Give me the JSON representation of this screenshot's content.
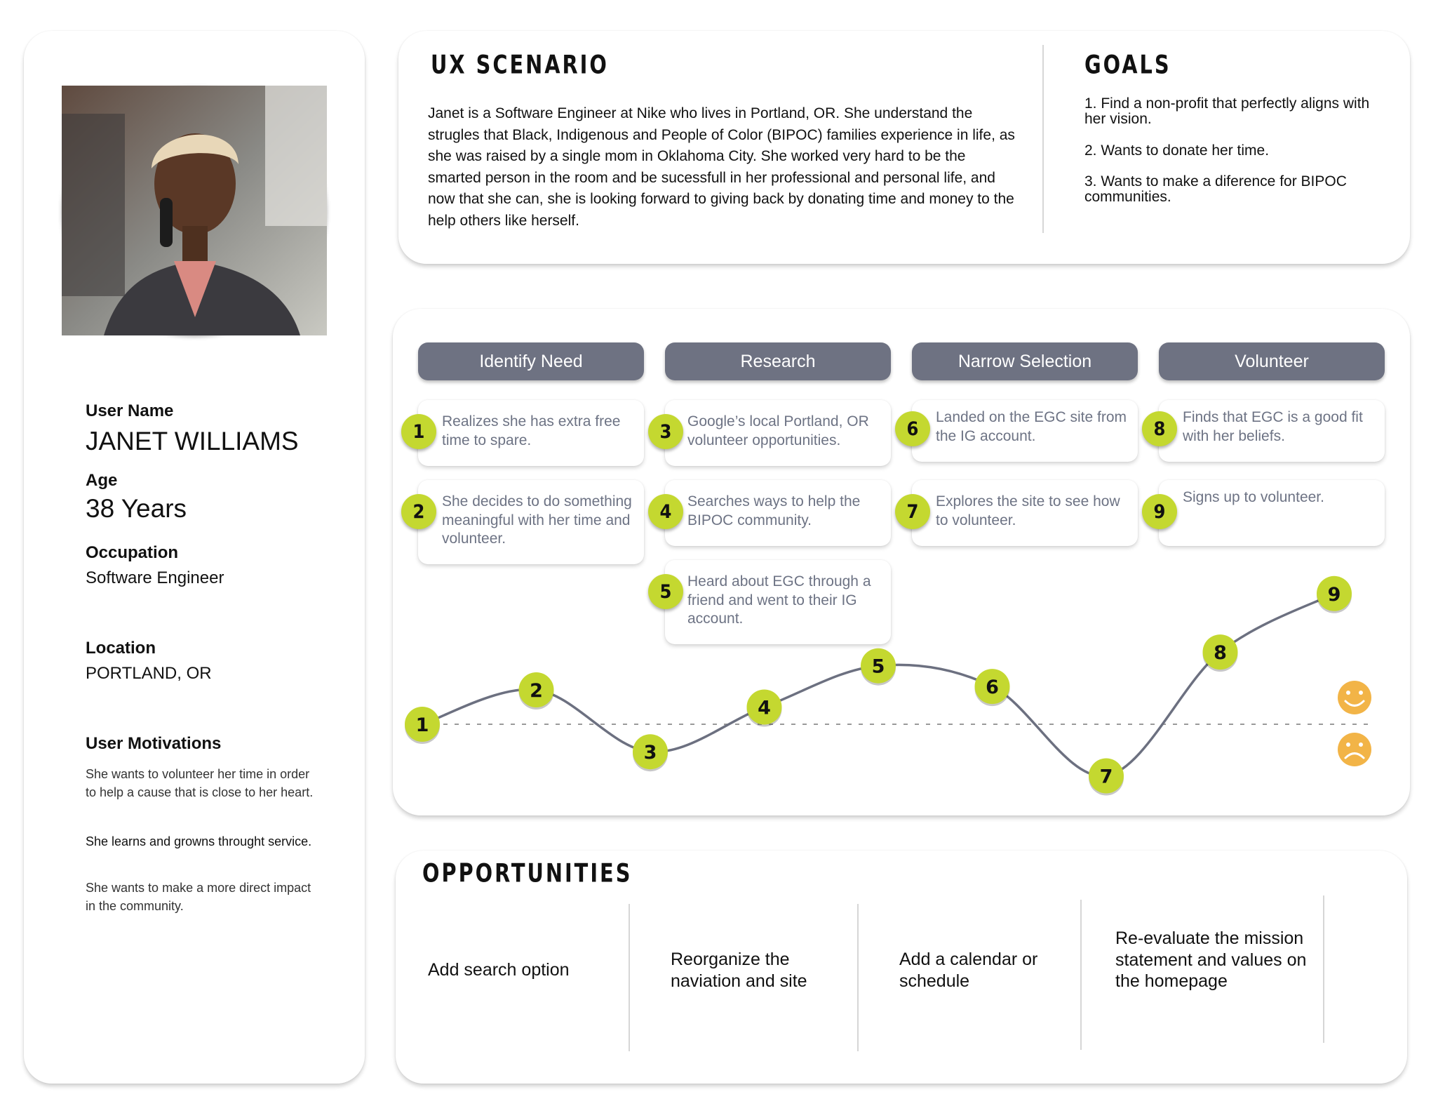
{
  "persona": {
    "user_name_label": "User Name",
    "user_name": "JANET WILLIAMS",
    "age_label": "Age",
    "age": "38 Years",
    "occupation_label": "Occupation",
    "occupation": "Software Engineer",
    "location_label": "Location",
    "location": "PORTLAND, OR",
    "motivations_label": "User Motivations",
    "motivations": [
      "She wants to volunteer her time in order to help  a cause that is close to her heart.",
      "She learns and growns throught service.",
      "She wants to make a more direct impact in the community."
    ]
  },
  "scenario": {
    "title": "UX SCENARIO",
    "text": "Janet is a Software Engineer at Nike who lives in Portland, OR.  She understand the strugles that Black, Indigenous and People of Color (BIPOC) families experience in life, as she was raised by a single mom in Oklahoma City. She worked very hard to be the smarted person in the room and be sucessfull in her professional and personal life, and now that she can, she is looking forward to giving back by donating time and money to the help others like herself."
  },
  "goals": {
    "title": "GOALS",
    "items": [
      "1. Find a non-profit that perfectly aligns with her vision.",
      "2. Wants to donate her time.",
      "3. Wants to make a diference for BIPOC communities."
    ]
  },
  "journey": {
    "phases": [
      "Identify Need",
      "Research",
      "Narrow Selection",
      "Volunteer"
    ],
    "steps": [
      {
        "num": "1",
        "text": "Realizes she has extra free time to spare."
      },
      {
        "num": "2",
        "text": "She decides to do something meaningful with her time and volunteer."
      },
      {
        "num": "3",
        "text": "Google’s local Portland, OR volunteer opportunities."
      },
      {
        "num": "4",
        "text": "Searches ways to help the BIPOC community."
      },
      {
        "num": "5",
        "text": "Heard about EGC through a friend and went to their IG account."
      },
      {
        "num": "6",
        "text": "Landed on the EGC site from the IG account."
      },
      {
        "num": "7",
        "text": "Explores the site to see how to volunteer."
      },
      {
        "num": "8",
        "text": "Finds that EGC is a good fit with her beliefs."
      },
      {
        "num": "9",
        "text": "Signs up to volunteer."
      }
    ],
    "accent_color": "#c4d830",
    "phase_color": "#6e7282",
    "emotion_color": "#f2b447"
  },
  "chart_data": {
    "type": "line",
    "x": [
      "1",
      "2",
      "3",
      "4",
      "5",
      "6",
      "7",
      "8",
      "9"
    ],
    "series": [
      {
        "values": [
          0,
          0.5,
          -0.4,
          0.25,
          0.85,
          0.55,
          -0.75,
          1.05,
          1.9
        ]
      }
    ],
    "ylim": [
      -1,
      2
    ],
    "baseline": 0,
    "icons": [
      "smile-icon",
      "frown-icon"
    ]
  },
  "opportunities": {
    "title": "OPPORTUNITIES",
    "items": [
      "Add search option",
      "Reorganize the naviation and site",
      "Add a calendar or schedule",
      "Re-evaluate the mission statement and values on the homepage"
    ]
  }
}
